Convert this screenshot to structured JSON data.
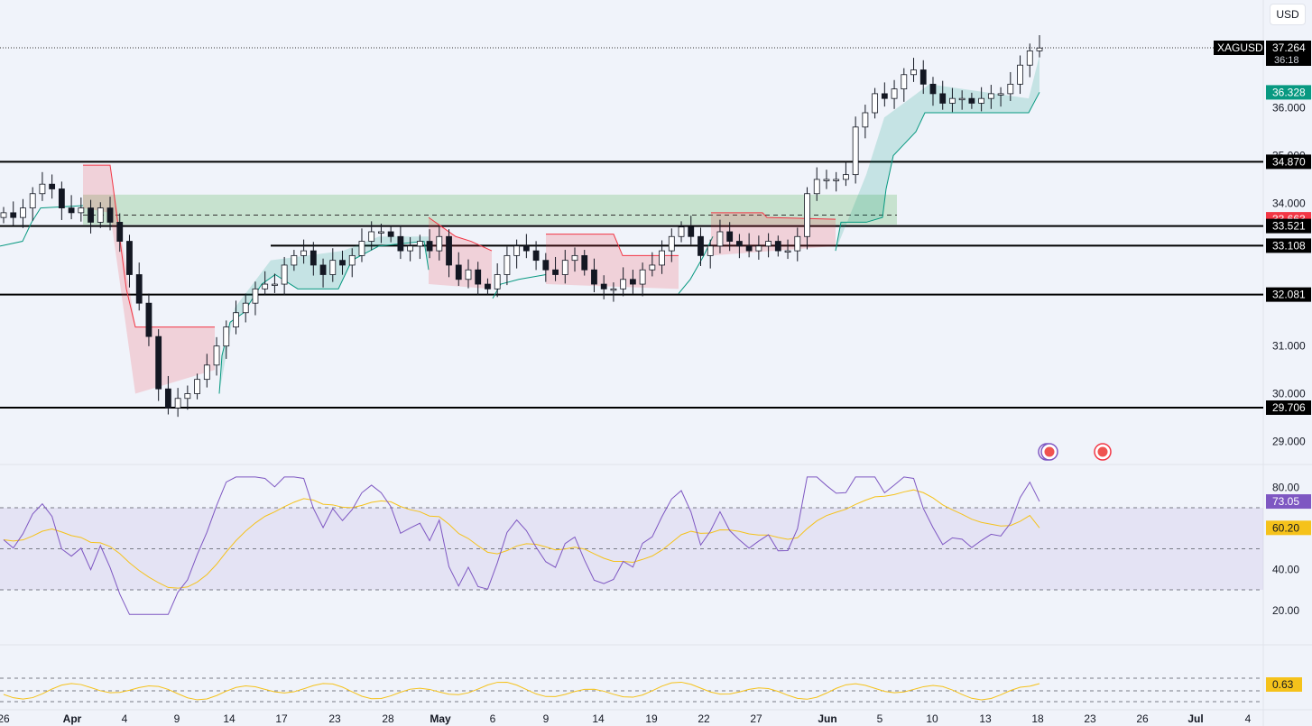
{
  "currency": "USD",
  "symbol": "XAGUSD",
  "countdown": "36:18",
  "colors": {
    "up": "#089981",
    "down": "#f23645",
    "rsi": "#7e57c2",
    "rsi_ma": "#f5c21b",
    "zone_green": "#4caf50",
    "zone_red": "#f23645",
    "level_line": "#000000",
    "grid_bg": "#f0f3fa"
  },
  "chart_data": [
    {
      "type": "candlestick",
      "name": "price",
      "ylim": [
        28.6,
        37.9
      ],
      "y_ticks": [
        "36.000",
        "35.000",
        "34.000",
        "31.000",
        "30.000",
        "29.000"
      ],
      "x_ticks": [
        "26",
        "Apr",
        "4",
        "9",
        "14",
        "17",
        "23",
        "28",
        "May",
        "6",
        "9",
        "14",
        "19",
        "22",
        "27",
        "Jun",
        "5",
        "10",
        "13",
        "18",
        "23",
        "26",
        "Jul",
        "4"
      ],
      "horizontal_levels": [
        34.87,
        33.521,
        33.108,
        32.081,
        29.706
      ],
      "dashed_level": 33.75,
      "green_zone": [
        33.55,
        34.18
      ],
      "price_labels": [
        {
          "value": "37.264",
          "kind": "last",
          "sub": "36:18"
        },
        {
          "value": "36.328",
          "kind": "green"
        },
        {
          "value": "34.870",
          "kind": "level"
        },
        {
          "value": "33.663",
          "kind": "red"
        },
        {
          "value": "33.521",
          "kind": "level"
        },
        {
          "value": "33.108",
          "kind": "level"
        },
        {
          "value": "32.081",
          "kind": "level"
        },
        {
          "value": "29.706",
          "kind": "level"
        }
      ],
      "closes_approx": [
        33.8,
        33.7,
        33.9,
        34.2,
        34.4,
        34.3,
        33.9,
        33.8,
        33.9,
        33.6,
        33.9,
        33.6,
        33.2,
        32.5,
        31.9,
        31.2,
        30.1,
        29.7,
        29.9,
        30.0,
        30.3,
        30.6,
        31.0,
        31.4,
        31.7,
        31.9,
        32.2,
        32.3,
        32.3,
        32.7,
        32.9,
        33.0,
        32.7,
        32.5,
        32.8,
        32.7,
        32.9,
        33.2,
        33.4,
        33.4,
        33.3,
        33.0,
        33.1,
        33.2,
        33.0,
        33.3,
        32.7,
        32.4,
        32.6,
        32.3,
        32.2,
        32.5,
        32.9,
        33.1,
        33.0,
        32.8,
        32.6,
        32.5,
        32.8,
        32.9,
        32.6,
        32.3,
        32.2,
        32.2,
        32.4,
        32.3,
        32.6,
        32.7,
        33.0,
        33.3,
        33.5,
        33.3,
        32.9,
        33.1,
        33.4,
        33.2,
        33.1,
        33.0,
        33.1,
        33.2,
        33.0,
        33.0,
        33.3,
        34.2,
        34.5,
        34.5,
        34.5,
        34.6,
        35.6,
        35.9,
        36.3,
        36.2,
        36.4,
        36.7,
        36.8,
        36.5,
        36.3,
        36.1,
        36.2,
        36.2,
        36.1,
        36.2,
        36.3,
        36.3,
        36.5,
        36.9,
        37.2,
        37.26
      ],
      "rsi": {
        "ylim": [
          0,
          100
        ],
        "y_ticks": [
          "80.00",
          "40.00",
          "20.00"
        ],
        "bands": [
          70,
          50,
          30
        ],
        "value_label": "73.05",
        "ma_label": "60.20"
      },
      "lower_indicator": {
        "value_label": "0.63"
      }
    }
  ]
}
